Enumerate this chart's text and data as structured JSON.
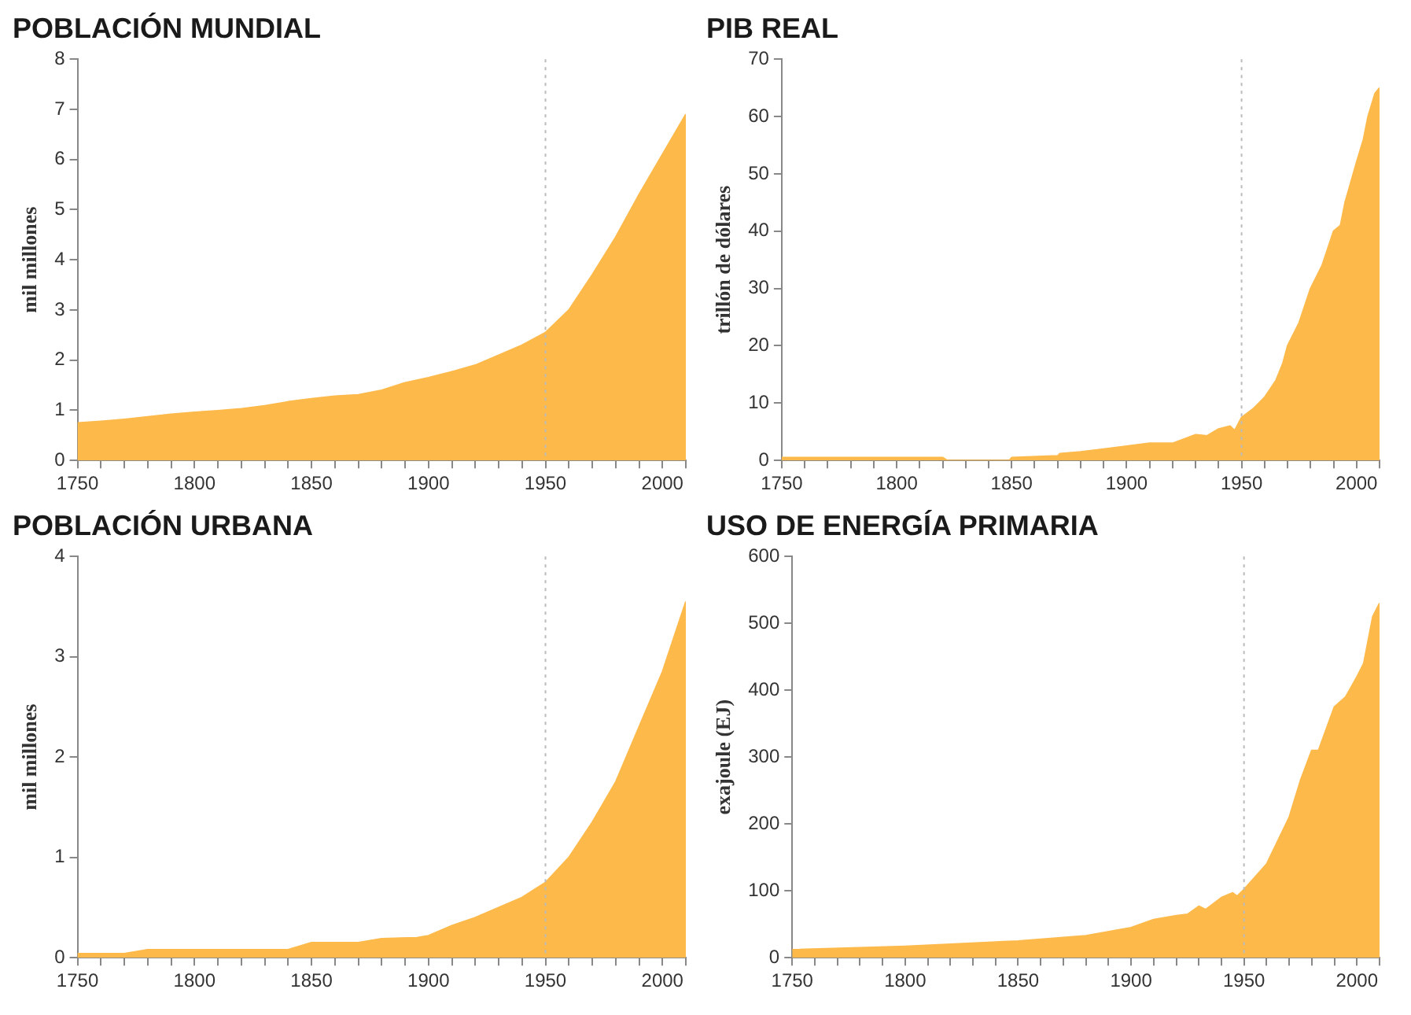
{
  "chart_data": [
    {
      "type": "area",
      "title": "POBLACIÓN MUNDIAL",
      "ylabel": "mil millones",
      "color": "#fdb94a",
      "grid": false,
      "xlim": [
        1750,
        2010
      ],
      "ylim": [
        0,
        8
      ],
      "yticks": [
        0,
        1,
        2,
        3,
        4,
        5,
        6,
        7,
        8
      ],
      "xticks": [
        1750,
        {
          "value": 1760,
          "label": null
        },
        {
          "value": 1770,
          "label": null
        },
        {
          "value": 1780,
          "label": null
        },
        {
          "value": 1790,
          "label": null
        },
        1800,
        {
          "value": 1810,
          "label": null
        },
        {
          "value": 1820,
          "label": null
        },
        {
          "value": 1830,
          "label": null
        },
        {
          "value": 1840,
          "label": null
        },
        1850,
        {
          "value": 1860,
          "label": null
        },
        {
          "value": 1870,
          "label": null
        },
        {
          "value": 1880,
          "label": null
        },
        {
          "value": 1890,
          "label": null
        },
        1900,
        {
          "value": 1910,
          "label": null
        },
        {
          "value": 1920,
          "label": null
        },
        {
          "value": 1930,
          "label": null
        },
        {
          "value": 1940,
          "label": null
        },
        1950,
        {
          "value": 1960,
          "label": null
        },
        {
          "value": 1970,
          "label": null
        },
        {
          "value": 1980,
          "label": null
        },
        {
          "value": 1990,
          "label": null
        },
        2000,
        {
          "value": 2010,
          "label": null
        }
      ],
      "ref_lines": [
        {
          "axis": "x",
          "value": 1950,
          "color": "#bbbbbb",
          "line_style": "dotted"
        }
      ],
      "x": [
        1750,
        1760,
        1770,
        1780,
        1790,
        1800,
        1810,
        1820,
        1830,
        1840,
        1850,
        1860,
        1870,
        1880,
        1890,
        1900,
        1910,
        1920,
        1930,
        1940,
        1950,
        1960,
        1970,
        1980,
        1990,
        2000,
        2010
      ],
      "values": [
        0.75,
        0.78,
        0.82,
        0.87,
        0.92,
        0.96,
        0.99,
        1.03,
        1.09,
        1.17,
        1.23,
        1.28,
        1.31,
        1.4,
        1.55,
        1.65,
        1.77,
        1.9,
        2.1,
        2.3,
        2.55,
        3.0,
        3.7,
        4.45,
        5.3,
        6.1,
        6.9
      ]
    },
    {
      "type": "area",
      "title": "PIB REAL",
      "ylabel": "trillón de dólares",
      "color": "#fdb94a",
      "grid": false,
      "xlim": [
        1750,
        2010
      ],
      "ylim": [
        0,
        70
      ],
      "yticks": [
        0,
        10,
        20,
        30,
        40,
        50,
        60,
        70
      ],
      "xticks": [
        1750,
        {
          "value": 1760,
          "label": null
        },
        {
          "value": 1770,
          "label": null
        },
        {
          "value": 1780,
          "label": null
        },
        {
          "value": 1790,
          "label": null
        },
        1800,
        {
          "value": 1810,
          "label": null
        },
        {
          "value": 1820,
          "label": null
        },
        {
          "value": 1830,
          "label": null
        },
        {
          "value": 1840,
          "label": null
        },
        1850,
        {
          "value": 1860,
          "label": null
        },
        {
          "value": 1870,
          "label": null
        },
        {
          "value": 1880,
          "label": null
        },
        {
          "value": 1890,
          "label": null
        },
        1900,
        {
          "value": 1910,
          "label": null
        },
        {
          "value": 1920,
          "label": null
        },
        {
          "value": 1930,
          "label": null
        },
        {
          "value": 1940,
          "label": null
        },
        1950,
        {
          "value": 1960,
          "label": null
        },
        {
          "value": 1970,
          "label": null
        },
        {
          "value": 1980,
          "label": null
        },
        {
          "value": 1990,
          "label": null
        },
        2000,
        {
          "value": 2010,
          "label": null
        }
      ],
      "ref_lines": [
        {
          "axis": "x",
          "value": 1950,
          "color": "#bbbbbb",
          "line_style": "dotted"
        }
      ],
      "x": [
        1750,
        1820,
        1822,
        1849,
        1850,
        1870,
        1871,
        1880,
        1890,
        1900,
        1910,
        1920,
        1930,
        1935,
        1940,
        1945,
        1947,
        1950,
        1955,
        1960,
        1965,
        1968,
        1970,
        1975,
        1980,
        1985,
        1990,
        1993,
        1995,
        2000,
        2003,
        2005,
        2008,
        2010
      ],
      "values": [
        0.5,
        0.5,
        0,
        0,
        0.5,
        0.8,
        1.2,
        1.5,
        2,
        2.5,
        3,
        3,
        4.5,
        4.3,
        5.5,
        6,
        5.2,
        7.5,
        9,
        11,
        14,
        17,
        20,
        24,
        30,
        34,
        40,
        41,
        45,
        52,
        56,
        60,
        64,
        65
      ]
    },
    {
      "type": "area",
      "title": "POBLACIÓN URBANA",
      "ylabel": "mil millones",
      "color": "#fdb94a",
      "grid": false,
      "xlim": [
        1750,
        2010
      ],
      "ylim": [
        0,
        4
      ],
      "yticks": [
        0,
        1,
        2,
        3,
        4
      ],
      "xticks": [
        1750,
        {
          "value": 1760,
          "label": null
        },
        {
          "value": 1770,
          "label": null
        },
        {
          "value": 1780,
          "label": null
        },
        {
          "value": 1790,
          "label": null
        },
        1800,
        {
          "value": 1810,
          "label": null
        },
        {
          "value": 1820,
          "label": null
        },
        {
          "value": 1830,
          "label": null
        },
        {
          "value": 1840,
          "label": null
        },
        1850,
        {
          "value": 1860,
          "label": null
        },
        {
          "value": 1870,
          "label": null
        },
        {
          "value": 1880,
          "label": null
        },
        {
          "value": 1890,
          "label": null
        },
        1900,
        {
          "value": 1910,
          "label": null
        },
        {
          "value": 1920,
          "label": null
        },
        {
          "value": 1930,
          "label": null
        },
        {
          "value": 1940,
          "label": null
        },
        1950,
        {
          "value": 1960,
          "label": null
        },
        {
          "value": 1970,
          "label": null
        },
        {
          "value": 1980,
          "label": null
        },
        {
          "value": 1990,
          "label": null
        },
        2000,
        {
          "value": 2010,
          "label": null
        }
      ],
      "ref_lines": [
        {
          "axis": "x",
          "value": 1950,
          "color": "#bbbbbb",
          "line_style": "dotted"
        }
      ],
      "x": [
        1750,
        1770,
        1780,
        1800,
        1840,
        1850,
        1870,
        1880,
        1895,
        1900,
        1910,
        1920,
        1930,
        1940,
        1950,
        1960,
        1970,
        1980,
        1990,
        2000,
        2010
      ],
      "values": [
        0.04,
        0.04,
        0.08,
        0.08,
        0.08,
        0.15,
        0.15,
        0.19,
        0.2,
        0.22,
        0.32,
        0.4,
        0.5,
        0.6,
        0.75,
        1.0,
        1.35,
        1.75,
        2.3,
        2.85,
        3.55
      ]
    },
    {
      "type": "area",
      "title": "USO DE ENERGÍA PRIMARIA",
      "ylabel": "exajoule (EJ)",
      "color": "#fdb94a",
      "grid": false,
      "xlim": [
        1750,
        2010
      ],
      "ylim": [
        0,
        600
      ],
      "yticks": [
        0,
        100,
        200,
        300,
        400,
        500,
        600
      ],
      "xticks": [
        1750,
        {
          "value": 1760,
          "label": null
        },
        {
          "value": 1770,
          "label": null
        },
        {
          "value": 1780,
          "label": null
        },
        {
          "value": 1790,
          "label": null
        },
        1800,
        {
          "value": 1810,
          "label": null
        },
        {
          "value": 1820,
          "label": null
        },
        {
          "value": 1830,
          "label": null
        },
        {
          "value": 1840,
          "label": null
        },
        1850,
        {
          "value": 1860,
          "label": null
        },
        {
          "value": 1870,
          "label": null
        },
        {
          "value": 1880,
          "label": null
        },
        {
          "value": 1890,
          "label": null
        },
        1900,
        {
          "value": 1910,
          "label": null
        },
        {
          "value": 1920,
          "label": null
        },
        {
          "value": 1930,
          "label": null
        },
        {
          "value": 1940,
          "label": null
        },
        1950,
        {
          "value": 1960,
          "label": null
        },
        {
          "value": 1970,
          "label": null
        },
        {
          "value": 1980,
          "label": null
        },
        {
          "value": 1990,
          "label": null
        },
        2000,
        {
          "value": 2010,
          "label": null
        }
      ],
      "ref_lines": [
        {
          "axis": "x",
          "value": 1950,
          "color": "#bbbbbb",
          "line_style": "dotted"
        }
      ],
      "x": [
        1750,
        1800,
        1850,
        1880,
        1900,
        1910,
        1920,
        1925,
        1930,
        1933,
        1940,
        1945,
        1947,
        1950,
        1960,
        1970,
        1975,
        1980,
        1983,
        1990,
        1995,
        2000,
        2003,
        2007,
        2010
      ],
      "values": [
        12,
        17,
        25,
        33,
        45,
        57,
        63,
        65,
        77,
        72,
        90,
        97,
        92,
        102,
        140,
        210,
        265,
        310,
        310,
        375,
        390,
        420,
        440,
        510,
        530
      ]
    }
  ]
}
